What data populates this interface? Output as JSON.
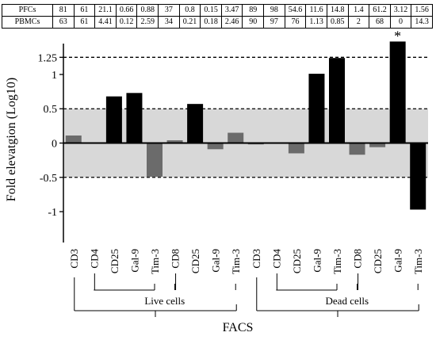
{
  "table": {
    "rows": [
      {
        "label": "PFCs",
        "values": [
          "81",
          "61",
          "21.1",
          "0.66",
          "0.88",
          "37",
          "0.8",
          "0.15",
          "3.47",
          "89",
          "98",
          "54.6",
          "11.6",
          "14.8",
          "1.4",
          "61.2",
          "3.12",
          "1.56"
        ]
      },
      {
        "label": "PBMCs",
        "values": [
          "63",
          "61",
          "4.41",
          "0.12",
          "2.59",
          "34",
          "0.21",
          "0.18",
          "2.46",
          "90",
          "97",
          "76",
          "1.13",
          "0.85",
          "2",
          "68",
          "0",
          "14.3"
        ]
      }
    ]
  },
  "chart_data": {
    "type": "bar",
    "ylabel": "Fold elevatgion (Log10)",
    "xlabel": "FACS",
    "ylim": [
      -1.45,
      1.45
    ],
    "yticks": [
      -1,
      -0.5,
      0,
      0.5,
      1,
      1.25
    ],
    "ytick_labels": [
      "-1",
      "-0.5",
      "0",
      "0.5",
      "1",
      "1.25"
    ],
    "dashed_lines": [
      1.25,
      0.5,
      -0.5
    ],
    "shaded_band": [
      -0.5,
      0.5
    ],
    "categories": [
      "CD3",
      "CD4",
      "CD25",
      "Gal-9",
      "Tim-3",
      "CD8",
      "CD25",
      "Gal-9",
      "Tim-3",
      "CD3",
      "CD4",
      "CD25",
      "Gal-9",
      "Tim-3",
      "CD8",
      "CD25",
      "Gal-9",
      "Tim-3"
    ],
    "values": [
      0.11,
      0.0,
      0.68,
      0.73,
      -0.49,
      0.04,
      0.57,
      -0.09,
      0.15,
      -0.02,
      0.0,
      -0.15,
      1.01,
      1.24,
      -0.17,
      -0.06,
      1.48,
      -0.97
    ],
    "significant": [
      false,
      false,
      true,
      true,
      false,
      false,
      true,
      false,
      false,
      false,
      false,
      false,
      true,
      true,
      false,
      false,
      true,
      true
    ],
    "colors": {
      "significant": "#000000",
      "not_significant": "#6b6b6b",
      "band": "#d8d8d8"
    },
    "annotation": {
      "text": "*",
      "category_index": 16
    },
    "groups": [
      {
        "label": "Live cells",
        "from": 1,
        "to": 4
      },
      {
        "label": "Dead cells",
        "from": 10,
        "to": 13
      }
    ],
    "outer_groups": [
      {
        "from": 0,
        "to": 8
      },
      {
        "from": 9,
        "to": 17
      }
    ]
  }
}
